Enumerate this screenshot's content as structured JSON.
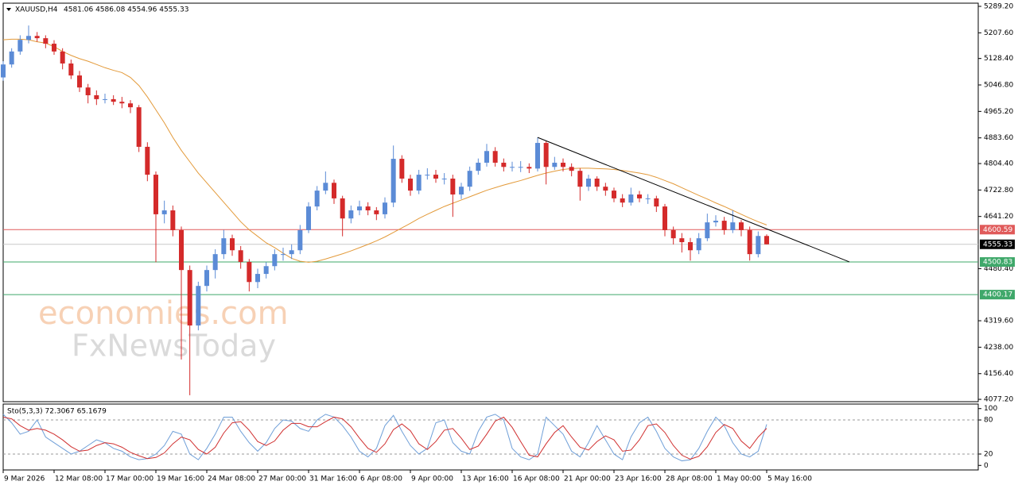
{
  "chart_data": {
    "type": "candlestick",
    "symbol": "XAUUSD,H4",
    "ohlc_text": "4581.06 4586.08 4554.96 4555.33",
    "categories": [
      "9 Mar 2026",
      null,
      null,
      null,
      null,
      null,
      "12 Mar 08:00",
      null,
      null,
      null,
      null,
      null,
      "17 Mar 00:00",
      null,
      null,
      null,
      null,
      null,
      "19 Mar 16:00",
      null,
      null,
      null,
      null,
      null,
      "24 Mar 08:00",
      null,
      null,
      null,
      null,
      null,
      "27 Mar 00:00",
      null,
      null,
      null,
      null,
      null,
      "31 Mar 16:00",
      null,
      null,
      null,
      null,
      null,
      "6 Apr 08:00",
      null,
      null,
      null,
      null,
      null,
      "9 Apr 00:00",
      null,
      null,
      null,
      null,
      null,
      "13 Apr 16:00",
      null,
      null,
      null,
      null,
      null,
      "16 Apr 08:00",
      null,
      null,
      null,
      null,
      null,
      "21 Apr 00:00",
      null,
      null,
      null,
      null,
      null,
      "23 Apr 16:00",
      null,
      null,
      null,
      null,
      null,
      "28 Apr 08:00",
      null,
      null,
      null,
      null,
      null,
      "1 May 00:00",
      null,
      null,
      null,
      null,
      null,
      "5 May 16:00"
    ],
    "open": [
      5070,
      5110,
      5150,
      5186,
      5198,
      5191,
      5174,
      5150,
      5113,
      5076,
      5039,
      5015,
      5003,
      5003,
      4995,
      4990,
      4978,
      4856,
      4770,
      4648,
      4660,
      4599,
      4476,
      4305,
      4427,
      4476,
      4525,
      4574,
      4537,
      4501,
      4439,
      4464,
      4488,
      4525,
      4525,
      4537,
      4599,
      4672,
      4721,
      4745,
      4697,
      4635,
      4660,
      4672,
      4660,
      4648,
      4684,
      4819,
      4758,
      4721,
      4770,
      4770,
      4758,
      4758,
      4709,
      4733,
      4782,
      4807,
      4843,
      4807,
      4794,
      4794,
      4794,
      4789,
      4868,
      4794,
      4807,
      4794,
      4782,
      4733,
      4758,
      4733,
      4721,
      4697,
      4684,
      4709,
      4697,
      4697,
      4672,
      4599,
      4574,
      4562,
      4537,
      4574,
      4623,
      4628,
      4599,
      4623,
      4599,
      4525,
      4581.06
    ],
    "high": [
      5120,
      5160,
      5200,
      5230,
      5210,
      5200,
      5185,
      5160,
      5125,
      5090,
      5050,
      5030,
      5020,
      5015,
      5010,
      5000,
      4985,
      4870,
      4780,
      4690,
      4675,
      4610,
      4490,
      4440,
      4490,
      4540,
      4600,
      4585,
      4550,
      4510,
      4480,
      4500,
      4540,
      4545,
      4555,
      4615,
      4685,
      4735,
      4780,
      4755,
      4705,
      4675,
      4690,
      4685,
      4670,
      4700,
      4860,
      4830,
      4770,
      4785,
      4790,
      4785,
      4775,
      4770,
      4745,
      4795,
      4820,
      4865,
      4855,
      4820,
      4810,
      4812,
      4805,
      4885,
      4875,
      4825,
      4820,
      4805,
      4790,
      4770,
      4765,
      4745,
      4730,
      4710,
      4730,
      4720,
      4710,
      4705,
      4680,
      4610,
      4590,
      4575,
      4590,
      4650,
      4645,
      4640,
      4660,
      4630,
      4610,
      4595,
      4586.08
    ],
    "low": [
      5060,
      5100,
      5140,
      5175,
      5180,
      5160,
      5140,
      5095,
      5065,
      5025,
      4990,
      4985,
      4990,
      4985,
      4975,
      4960,
      4840,
      4750,
      4500,
      4620,
      4580,
      4200,
      4090,
      4290,
      4410,
      4450,
      4510,
      4520,
      4480,
      4410,
      4420,
      4450,
      4475,
      4505,
      4510,
      4525,
      4590,
      4660,
      4710,
      4680,
      4580,
      4620,
      4645,
      4645,
      4630,
      4635,
      4670,
      4745,
      4705,
      4710,
      4755,
      4745,
      4740,
      4640,
      4695,
      4720,
      4770,
      4795,
      4795,
      4780,
      4780,
      4778,
      4775,
      4780,
      4740,
      4785,
      4780,
      4765,
      4690,
      4720,
      4720,
      4705,
      4685,
      4670,
      4675,
      4685,
      4680,
      4655,
      4580,
      4555,
      4530,
      4505,
      4525,
      4565,
      4610,
      4585,
      4590,
      4580,
      4505,
      4515,
      4554.96
    ],
    "close": [
      5110,
      5150,
      5186,
      5198,
      5191,
      5174,
      5150,
      5113,
      5076,
      5039,
      5015,
      5003,
      5003,
      4995,
      4990,
      4978,
      4856,
      4770,
      4648,
      4660,
      4599,
      4476,
      4305,
      4427,
      4476,
      4525,
      4574,
      4537,
      4501,
      4439,
      4464,
      4488,
      4525,
      4525,
      4537,
      4599,
      4672,
      4721,
      4745,
      4697,
      4635,
      4660,
      4672,
      4660,
      4648,
      4684,
      4819,
      4758,
      4721,
      4770,
      4770,
      4758,
      4758,
      4709,
      4733,
      4782,
      4807,
      4843,
      4807,
      4794,
      4794,
      4794,
      4789,
      4868,
      4794,
      4807,
      4794,
      4782,
      4733,
      4758,
      4733,
      4721,
      4697,
      4684,
      4709,
      4697,
      4697,
      4672,
      4599,
      4574,
      4562,
      4537,
      4574,
      4623,
      4628,
      4599,
      4623,
      4599,
      4525,
      4581.06,
      4555.33
    ],
    "up_color": "#5b8bd6",
    "down_color": "#d42a2a",
    "ylim": [
      4070,
      5299
    ],
    "yticks": [
      {
        "value": 5289.2,
        "label": "5289.20"
      },
      {
        "value": 5207.6,
        "label": "5207.60"
      },
      {
        "value": 5128.4,
        "label": "5128.40"
      },
      {
        "value": 5046.8,
        "label": "5046.80"
      },
      {
        "value": 4965.2,
        "label": "4965.20"
      },
      {
        "value": 4883.6,
        "label": "4883.60"
      },
      {
        "value": 4804.4,
        "label": "4804.40"
      },
      {
        "value": 4722.8,
        "label": "4722.80"
      },
      {
        "value": 4641.2,
        "label": "4641.20"
      },
      {
        "value": 4480.4,
        "label": "4480.40"
      },
      {
        "value": 4319.6,
        "label": "4319.60"
      },
      {
        "value": 4238,
        "label": "4238.00"
      },
      {
        "value": 4156.4,
        "label": "4156.40"
      },
      {
        "value": 4077.2,
        "label": "4077.20"
      }
    ],
    "moving_average": {
      "color": "#e39a3a",
      "values": [
        5186,
        5188,
        5188,
        5186,
        5180,
        5176,
        5165,
        5150,
        5138,
        5128,
        5120,
        5110,
        5100,
        5092,
        5085,
        5070,
        5045,
        5010,
        4970,
        4930,
        4885,
        4845,
        4810,
        4775,
        4745,
        4715,
        4685,
        4655,
        4625,
        4600,
        4580,
        4560,
        4545,
        4528,
        4512,
        4503,
        4500,
        4503,
        4510,
        4518,
        4526,
        4535,
        4545,
        4555,
        4566,
        4578,
        4592,
        4606,
        4620,
        4635,
        4648,
        4660,
        4672,
        4682,
        4692,
        4702,
        4712,
        4722,
        4730,
        4738,
        4745,
        4752,
        4760,
        4768,
        4775,
        4781,
        4786,
        4789,
        4790,
        4790,
        4789,
        4788,
        4786,
        4783,
        4779,
        4775,
        4770,
        4762,
        4752,
        4742,
        4730,
        4718,
        4706,
        4695,
        4683,
        4672,
        4660,
        4648,
        4636,
        4625,
        4615
      ]
    },
    "trendline": {
      "x": [
        63,
        99.75
      ],
      "y": [
        4885,
        4501
      ],
      "color": "#000000"
    },
    "levels": [
      {
        "value": 4600.59,
        "color": "#e05a5a"
      },
      {
        "value": 4555.33,
        "color": "#000000",
        "line_color": "#c8c8c8"
      },
      {
        "value": 4500.83,
        "color": "#3fa86a"
      },
      {
        "value": 4400.17,
        "color": "#3fa86a"
      }
    ],
    "oscillator": {
      "type": "line",
      "label": "Sto(5,3,3) 72.3067 65.1679",
      "ylim": [
        -8,
        108
      ],
      "yticks": [
        100,
        80,
        20,
        0
      ],
      "series": [
        {
          "color": "#6f9fd8",
          "values": [
            90,
            75,
            55,
            60,
            80,
            50,
            40,
            30,
            20,
            25,
            35,
            45,
            40,
            30,
            25,
            15,
            10,
            12,
            20,
            35,
            60,
            55,
            20,
            10,
            30,
            55,
            85,
            85,
            60,
            40,
            25,
            40,
            65,
            80,
            78,
            65,
            60,
            80,
            90,
            85,
            70,
            50,
            25,
            15,
            30,
            70,
            88,
            60,
            35,
            20,
            30,
            75,
            80,
            40,
            25,
            20,
            60,
            85,
            90,
            80,
            30,
            15,
            10,
            20,
            85,
            70,
            55,
            25,
            15,
            40,
            70,
            45,
            20,
            10,
            50,
            75,
            85,
            60,
            30,
            15,
            8,
            10,
            30,
            60,
            85,
            70,
            40,
            20,
            15,
            25,
            72.3067
          ]
        },
        {
          "color": "#d03030",
          "values": [
            85,
            82,
            70,
            62,
            65,
            62,
            55,
            45,
            33,
            25,
            27,
            35,
            40,
            38,
            32,
            23,
            17,
            12,
            14,
            22,
            38,
            50,
            45,
            28,
            20,
            32,
            57,
            75,
            77,
            62,
            42,
            35,
            43,
            62,
            74,
            74,
            68,
            68,
            77,
            85,
            82,
            68,
            48,
            30,
            23,
            38,
            63,
            73,
            61,
            38,
            28,
            42,
            62,
            65,
            48,
            28,
            34,
            55,
            78,
            85,
            67,
            42,
            18,
            15,
            38,
            58,
            70,
            50,
            32,
            27,
            42,
            52,
            45,
            25,
            27,
            45,
            70,
            73,
            58,
            35,
            18,
            11,
            16,
            33,
            58,
            72,
            65,
            43,
            30,
            50,
            65.1679
          ]
        }
      ]
    },
    "watermark": [
      "economies.com",
      "FxNewsToday"
    ]
  }
}
